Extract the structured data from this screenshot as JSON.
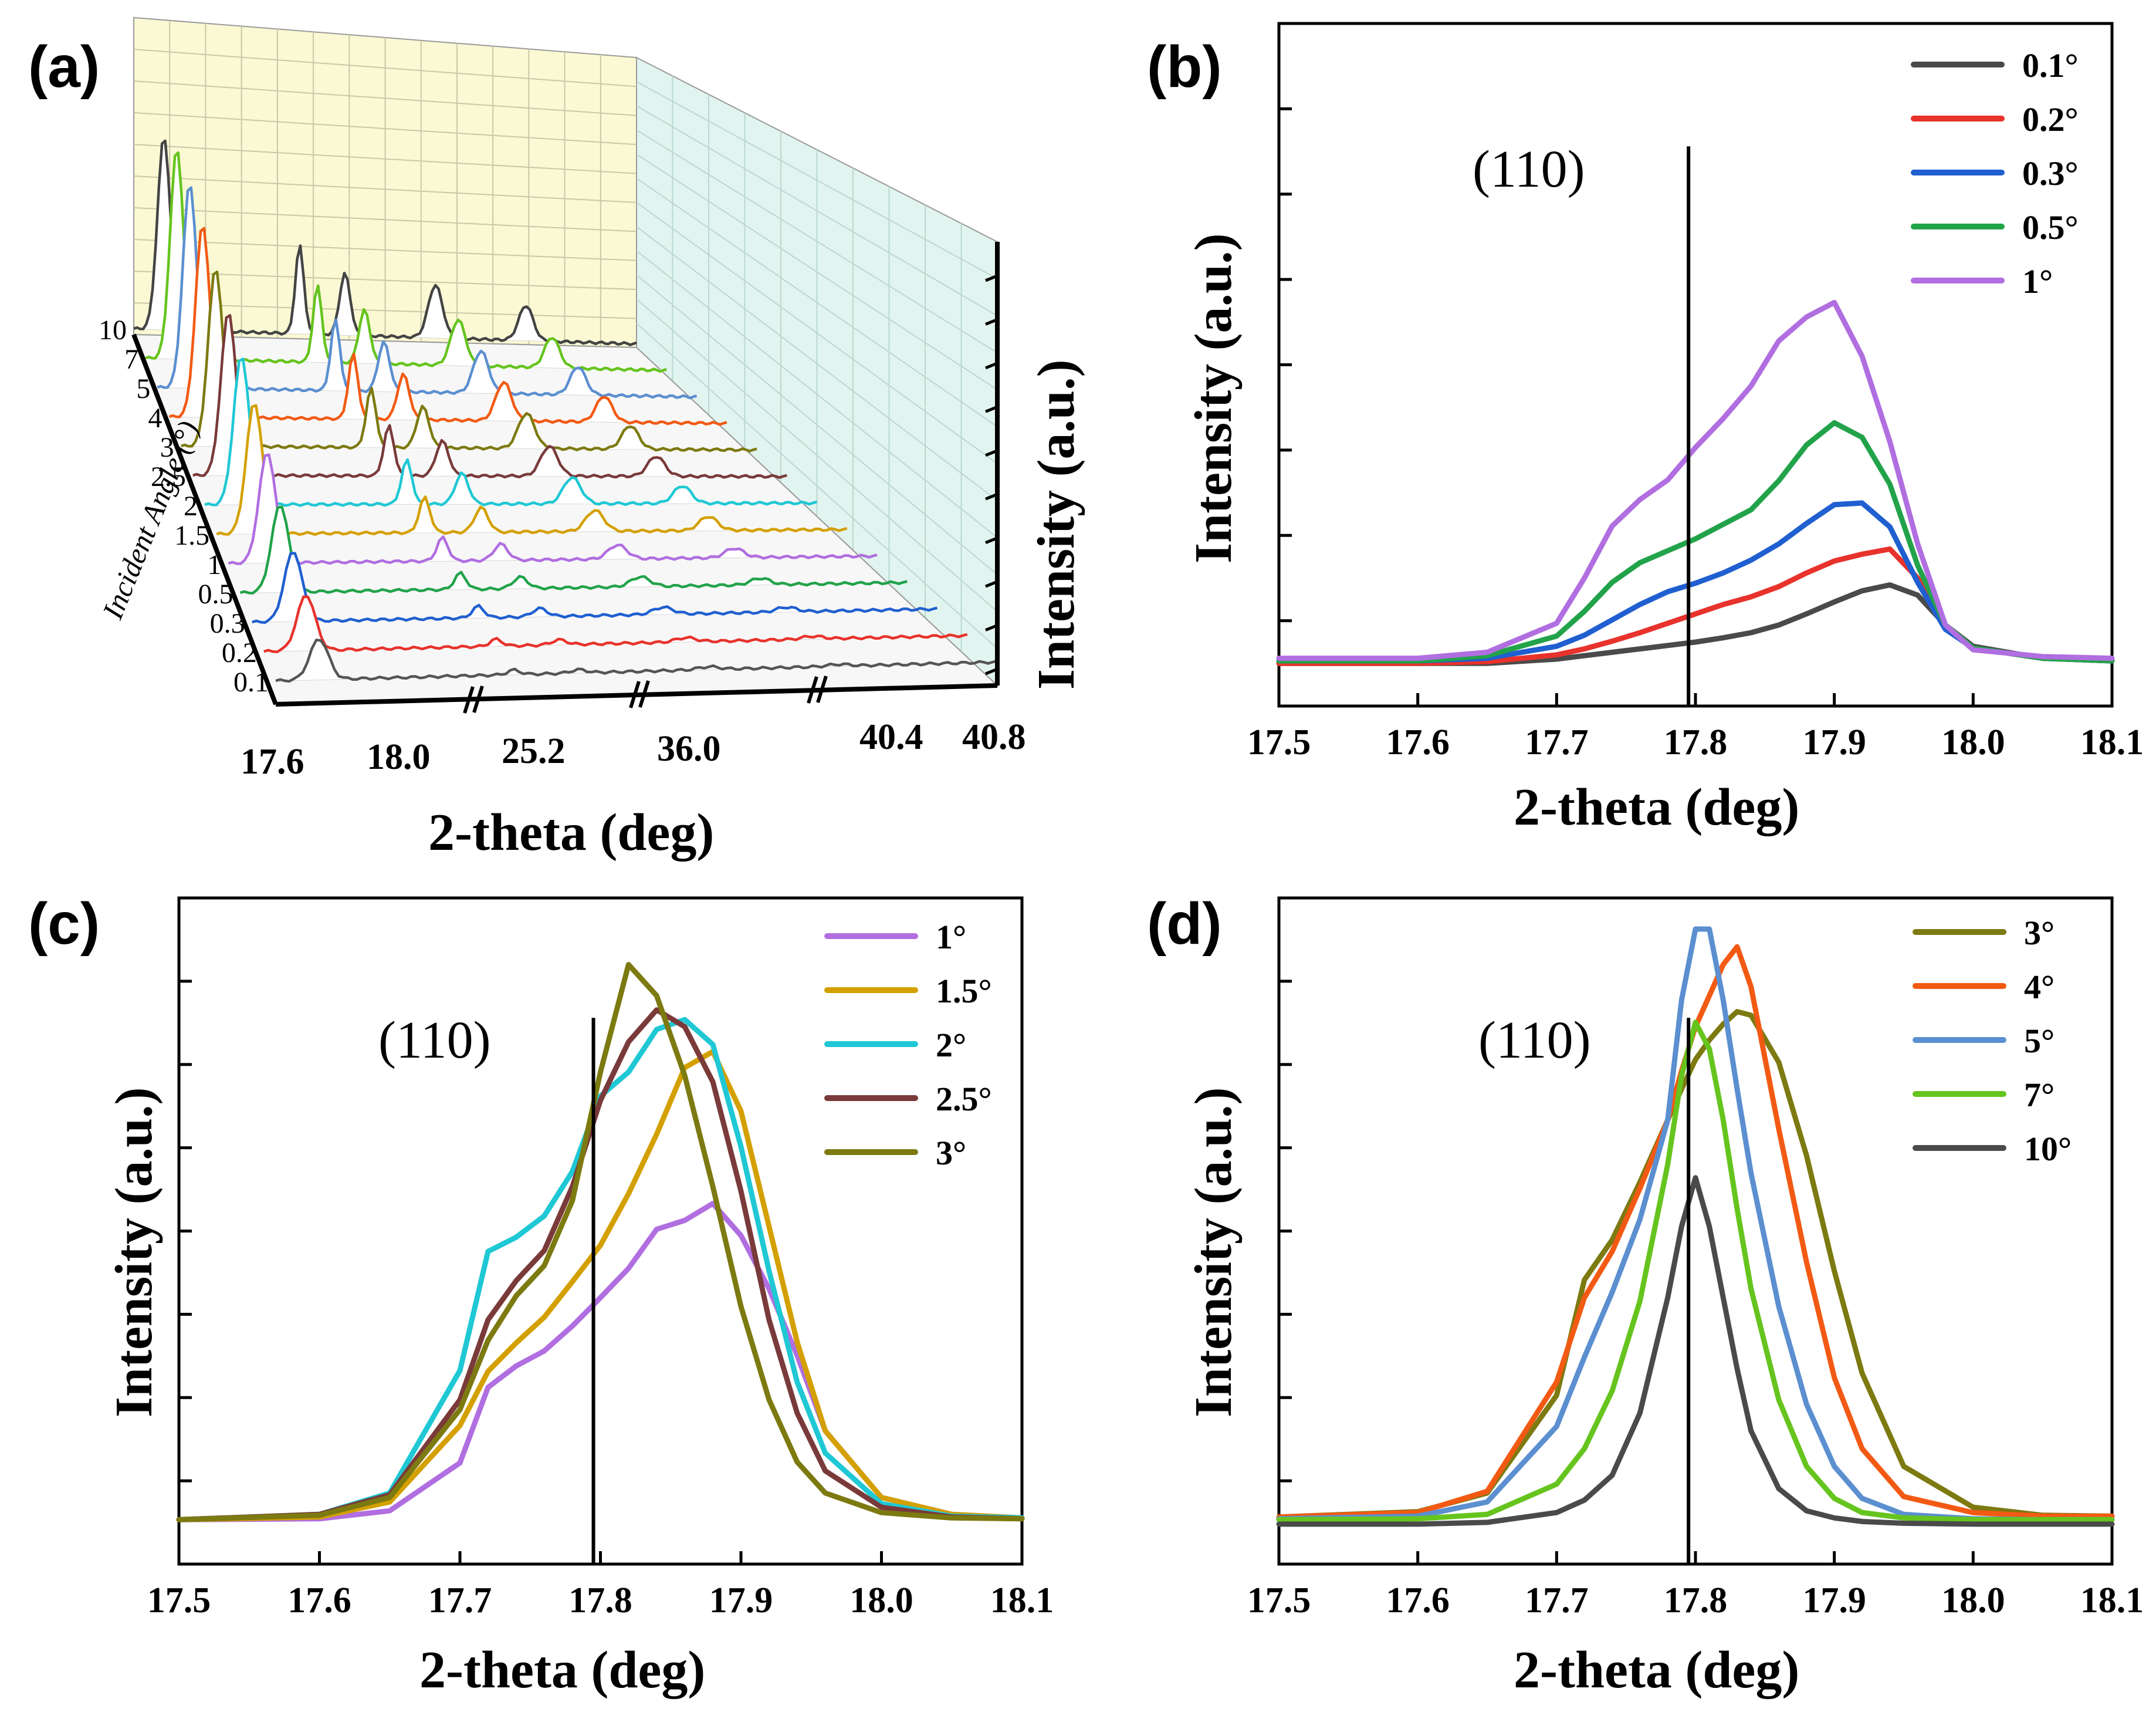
{
  "panels": {
    "a": {
      "label": "(a)",
      "xlabel": "2-theta (deg)",
      "ylabel": "Intensity (a.u.)",
      "zlabel": "Incident Angle (°)",
      "x_ticks": [
        "17.6",
        "18.0",
        "25.2",
        "36.0",
        "40.4",
        "40.8"
      ],
      "angles": [
        "0.1",
        "0.2",
        "0.3",
        "0.5",
        "1",
        "1.5",
        "2",
        "2.5",
        "3",
        "4",
        "5",
        "7",
        "10"
      ],
      "colors": [
        "#555555",
        "#e8322c",
        "#1f5fd0",
        "#22a34a",
        "#b06ee0",
        "#d4a000",
        "#1fc8d4",
        "#7a3a3a",
        "#7c7a10",
        "#f25a14",
        "#5b8fd0",
        "#66c41e",
        "#444444"
      ]
    },
    "b": {
      "label": "(b)",
      "annotation": "(110)",
      "legend": [
        "0.1°",
        "0.2°",
        "0.3°",
        "0.5°",
        "1°"
      ]
    },
    "c": {
      "label": "(c)",
      "annotation": "(110)",
      "legend": [
        "1°",
        "1.5°",
        "2°",
        "2.5°",
        "3°"
      ]
    },
    "d": {
      "label": "(d)",
      "annotation": "(110)",
      "legend": [
        "3°",
        "4°",
        "5°",
        "7°",
        "10°"
      ]
    }
  },
  "chart_data": [
    {
      "id": "b",
      "type": "line",
      "title": "",
      "xlabel": "2-theta (deg)",
      "ylabel": "Intensity (a.u.)",
      "xlim": [
        17.5,
        18.1
      ],
      "ylim": [
        -5,
        75
      ],
      "x_ticks": [
        "17.5",
        "17.6",
        "17.7",
        "17.8",
        "17.9",
        "18.0",
        "18.1"
      ],
      "grid": false,
      "legend_position": "top-right",
      "reference_line_x": 17.795,
      "x": [
        17.5,
        17.6,
        17.65,
        17.7,
        17.72,
        17.74,
        17.76,
        17.78,
        17.8,
        17.82,
        17.84,
        17.86,
        17.88,
        17.9,
        17.92,
        17.94,
        17.96,
        17.98,
        18.0,
        18.05,
        18.1
      ],
      "series": [
        {
          "name": "0.1°",
          "color": "#4a4a4a",
          "values": [
            0,
            0,
            0,
            0.5,
            0.9,
            1.3,
            1.7,
            2.1,
            2.5,
            3.0,
            3.6,
            4.5,
            5.8,
            7.2,
            8.5,
            9.2,
            8.0,
            4.5,
            2.0,
            0.6,
            0.3
          ]
        },
        {
          "name": "0.2°",
          "color": "#e8322c",
          "values": [
            0,
            0,
            0.2,
            1.0,
            1.7,
            2.6,
            3.6,
            4.7,
            5.8,
            6.9,
            7.8,
            9.0,
            10.6,
            12.0,
            12.8,
            13.4,
            10.0,
            4.5,
            1.8,
            0.6,
            0.3
          ]
        },
        {
          "name": "0.3°",
          "color": "#1f5fd0",
          "values": [
            0.3,
            0.3,
            0.6,
            2.0,
            3.3,
            5.1,
            6.9,
            8.4,
            9.4,
            10.6,
            12.1,
            14.0,
            16.4,
            18.6,
            18.8,
            16.0,
            9.5,
            4.0,
            1.8,
            0.6,
            0.3
          ]
        },
        {
          "name": "0.5°",
          "color": "#22a34a",
          "values": [
            0.3,
            0.3,
            0.9,
            3.2,
            6.1,
            9.5,
            11.8,
            13.2,
            14.6,
            16.3,
            18.0,
            21.4,
            25.6,
            28.2,
            26.5,
            21.0,
            11.5,
            4.5,
            1.8,
            0.6,
            0.3
          ]
        },
        {
          "name": "1°",
          "color": "#b06ee0",
          "values": [
            0.6,
            0.6,
            1.3,
            4.7,
            10.0,
            16.1,
            19.2,
            21.5,
            25.3,
            28.7,
            32.5,
            37.8,
            40.6,
            42.3,
            36.0,
            26.0,
            14.0,
            4.5,
            1.6,
            0.8,
            0.6
          ]
        }
      ]
    },
    {
      "id": "c",
      "type": "line",
      "title": "",
      "xlabel": "2-theta (deg)",
      "ylabel": "Intensity (a.u.)",
      "xlim": [
        17.5,
        18.1
      ],
      "ylim": [
        -5,
        70
      ],
      "x_ticks": [
        "17.5",
        "17.6",
        "17.7",
        "17.8",
        "17.9",
        "18.0",
        "18.1"
      ],
      "grid": false,
      "legend_position": "top-right",
      "reference_line_x": 17.795,
      "x": [
        17.5,
        17.6,
        17.65,
        17.7,
        17.72,
        17.74,
        17.76,
        17.78,
        17.8,
        17.82,
        17.84,
        17.86,
        17.88,
        17.9,
        17.92,
        17.94,
        17.96,
        18.0,
        18.05,
        18.1
      ],
      "series": [
        {
          "name": "1°",
          "color": "#b06ee0",
          "values": [
            0,
            0.1,
            1.0,
            6.4,
            14.9,
            17.3,
            19.0,
            21.8,
            25.0,
            28.3,
            32.7,
            33.7,
            35.6,
            32.0,
            26.0,
            18.5,
            10.0,
            2.5,
            0.6,
            0.2
          ]
        },
        {
          "name": "1.5°",
          "color": "#d4a000",
          "values": [
            0,
            0.3,
            2.0,
            10.6,
            16.7,
            19.9,
            22.8,
            26.8,
            30.9,
            36.7,
            43.4,
            50.9,
            52.7,
            46.0,
            33.0,
            20.0,
            10.0,
            2.5,
            0.6,
            0.2
          ]
        },
        {
          "name": "2°",
          "color": "#1fc8d4",
          "values": [
            0,
            0.6,
            3.0,
            16.8,
            30.2,
            31.8,
            34.2,
            39.2,
            47.7,
            50.4,
            55.2,
            56.3,
            53.5,
            42.0,
            28.0,
            15.5,
            7.5,
            1.8,
            0.4,
            0.2
          ]
        },
        {
          "name": "2.5°",
          "color": "#7a3a3a",
          "values": [
            0,
            0.6,
            2.8,
            13.5,
            22.5,
            26.9,
            30.3,
            37.5,
            47.2,
            53.8,
            57.4,
            55.5,
            49.3,
            37.0,
            22.5,
            12.0,
            5.5,
            1.4,
            0.3,
            0.1
          ]
        },
        {
          "name": "3°",
          "color": "#7c7a10",
          "values": [
            0,
            0.5,
            2.5,
            12.4,
            20.2,
            25.2,
            28.6,
            35.9,
            50.4,
            62.5,
            59.0,
            50.0,
            37.5,
            24.0,
            13.5,
            6.5,
            3.0,
            0.8,
            0.2,
            0.1
          ]
        }
      ]
    },
    {
      "id": "d",
      "type": "line",
      "title": "",
      "xlabel": "2-theta (deg)",
      "ylabel": "Intensity (a.u.)",
      "xlim": [
        17.5,
        18.1
      ],
      "ylim": [
        -5,
        70
      ],
      "x_ticks": [
        "17.5",
        "17.6",
        "17.7",
        "17.8",
        "17.9",
        "18.0",
        "18.1"
      ],
      "grid": false,
      "legend_position": "top-right",
      "reference_line_x": 17.795,
      "x": [
        17.5,
        17.6,
        17.65,
        17.7,
        17.72,
        17.74,
        17.76,
        17.78,
        17.79,
        17.8,
        17.81,
        17.82,
        17.83,
        17.84,
        17.86,
        17.88,
        17.9,
        17.92,
        17.95,
        18.0,
        18.05,
        18.1
      ],
      "series": [
        {
          "name": "3°",
          "color": "#7c7a10",
          "values": [
            0.3,
            0.9,
            3.0,
            14.0,
            27.0,
            31.5,
            38.0,
            45.0,
            48.5,
            51.8,
            54.0,
            55.8,
            57.2,
            56.8,
            51.5,
            41.0,
            28.0,
            16.5,
            6.0,
            1.4,
            0.5,
            0.4
          ]
        },
        {
          "name": "4°",
          "color": "#f25a14",
          "values": [
            0.3,
            0.8,
            3.2,
            15.5,
            25.0,
            30.2,
            37.3,
            45.0,
            50.5,
            55.5,
            59.0,
            62.5,
            64.5,
            60.0,
            44.0,
            29.0,
            16.0,
            8.0,
            2.6,
            0.8,
            0.4,
            0.4
          ]
        },
        {
          "name": "5°",
          "color": "#5b8fd0",
          "values": [
            0.1,
            0.4,
            2.0,
            10.5,
            18.3,
            25.6,
            33.8,
            45.0,
            58.5,
            66.5,
            66.5,
            58.5,
            48.5,
            39.0,
            24.0,
            13.0,
            6.0,
            2.4,
            0.6,
            0.1,
            0.0,
            0.0
          ]
        },
        {
          "name": "7°",
          "color": "#66c41e",
          "values": [
            0,
            0.1,
            0.6,
            4.0,
            8.0,
            14.5,
            24.6,
            40.0,
            50.0,
            56.0,
            53.0,
            45.0,
            35.0,
            26.0,
            13.5,
            6.0,
            2.4,
            0.8,
            0.2,
            0,
            0,
            0
          ]
        },
        {
          "name": "10°",
          "color": "#4a4a4a",
          "values": [
            -0.5,
            -0.5,
            -0.3,
            0.8,
            2.2,
            5.0,
            12.0,
            25.0,
            33.0,
            38.5,
            33.0,
            25.0,
            17.0,
            10.0,
            3.5,
            1.0,
            0.2,
            -0.2,
            -0.4,
            -0.5,
            -0.5,
            -0.5
          ]
        }
      ]
    }
  ]
}
